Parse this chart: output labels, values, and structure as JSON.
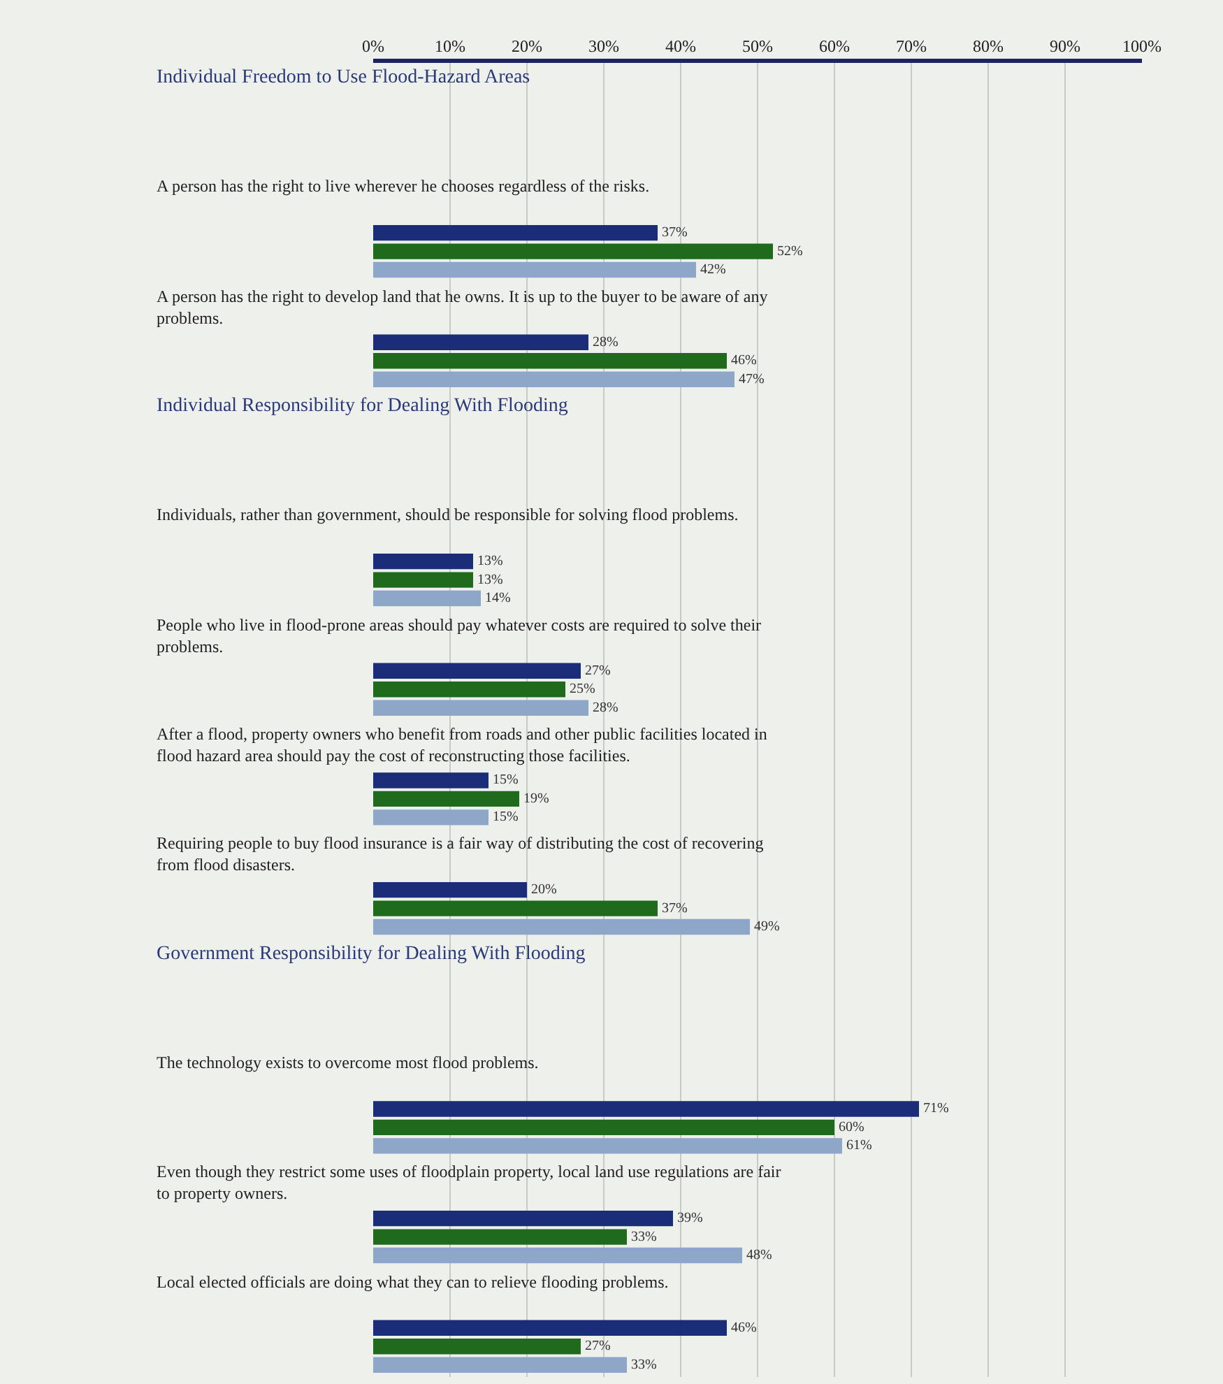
{
  "chart_data": {
    "type": "bar",
    "orientation": "horizontal",
    "categories": [
      "Individual Freedom to Use Flood-Hazard Areas",
      "A person has the right to live wherever he chooses regardless of the risks.",
      "A person has the right to develop land that he owns. It is up to the buyer to be aware of any problems.",
      "Individual Responsibility for Dealing With Flooding",
      "Individuals, rather than government, should be responsible for solving flood problems.",
      "People who live in flood-prone areas should pay whatever costs are required to solve their problems.",
      "After a flood, property owners who benefit from roads and other public facilities located in flood hazard area should pay the cost of reconstructing those facilities.",
      "Requiring people to buy flood insurance is a fair way of distributing the cost of recovering from flood disasters.",
      "Government Responsibility for Dealing With Flooding",
      "The technology exists to overcome most flood problems.",
      "Even though they restrict some uses of floodplain property, local land use regulations are fair to property owners.",
      "Local elected officials are doing what they can to relieve flooding problems."
    ],
    "series": [
      {
        "color": "#1b2d78",
        "values": [
          null,
          37,
          28,
          null,
          13,
          27,
          15,
          20,
          null,
          71,
          39,
          46
        ],
        "value_labels": [
          null,
          "37%",
          "28%",
          null,
          "13%",
          "27%",
          "15%",
          "20%",
          null,
          "71%",
          "39%",
          "46%"
        ]
      },
      {
        "color": "#1f6a1c",
        "values": [
          null,
          52,
          46,
          null,
          13,
          25,
          19,
          37,
          null,
          60,
          33,
          27
        ],
        "value_labels": [
          null,
          "52%",
          "46%",
          null,
          "13%",
          "25%",
          "19%",
          "37%",
          null,
          "60%",
          "33%",
          "27%"
        ]
      },
      {
        "color": "#8ea7c9",
        "values": [
          null,
          42,
          47,
          null,
          14,
          28,
          15,
          49,
          null,
          61,
          48,
          33
        ],
        "value_labels": [
          null,
          "42%",
          "47%",
          null,
          "14%",
          "28%",
          "15%",
          "49%",
          null,
          "61%",
          "48%",
          "33%"
        ]
      }
    ],
    "xlim": [
      0,
      100
    ],
    "xticks": [
      {
        "value": 0,
        "label": "0%"
      },
      {
        "value": 10,
        "label": "10%"
      },
      {
        "value": 20,
        "label": "20%"
      },
      {
        "value": 30,
        "label": "30%"
      },
      {
        "value": 40,
        "label": "40%"
      },
      {
        "value": 50,
        "label": "50%"
      },
      {
        "value": 60,
        "label": "60%"
      },
      {
        "value": 70,
        "label": "70%"
      },
      {
        "value": 80,
        "label": "80%"
      },
      {
        "value": 90,
        "label": "90%"
      },
      {
        "value": 100,
        "label": "100%"
      }
    ],
    "grid": "x"
  }
}
